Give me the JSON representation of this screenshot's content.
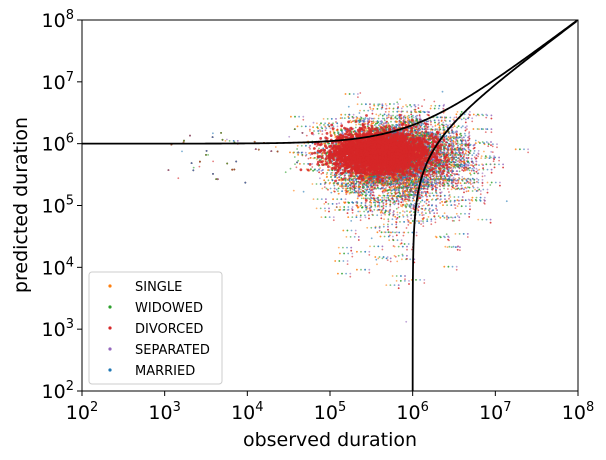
{
  "chart_data": {
    "type": "scatter",
    "title": "",
    "xlabel": "observed duration",
    "ylabel": "predicted duration",
    "xscale": "log",
    "yscale": "log",
    "xlim": [
      100,
      100000000
    ],
    "ylim": [
      100,
      100000000
    ],
    "x_ticks": [
      {
        "value": 100,
        "base": "10",
        "exp": "2"
      },
      {
        "value": 1000,
        "base": "10",
        "exp": "3"
      },
      {
        "value": 10000,
        "base": "10",
        "exp": "4"
      },
      {
        "value": 100000,
        "base": "10",
        "exp": "5"
      },
      {
        "value": 1000000,
        "base": "10",
        "exp": "6"
      },
      {
        "value": 10000000,
        "base": "10",
        "exp": "7"
      },
      {
        "value": 100000000,
        "base": "10",
        "exp": "8"
      }
    ],
    "y_ticks": [
      {
        "value": 100,
        "base": "10",
        "exp": "2"
      },
      {
        "value": 1000,
        "base": "10",
        "exp": "3"
      },
      {
        "value": 10000,
        "base": "10",
        "exp": "4"
      },
      {
        "value": 100000,
        "base": "10",
        "exp": "5"
      },
      {
        "value": 1000000,
        "base": "10",
        "exp": "6"
      },
      {
        "value": 10000000,
        "base": "10",
        "exp": "7"
      },
      {
        "value": 100000000,
        "base": "10",
        "exp": "8"
      }
    ],
    "grid": false,
    "legend_position": "lower-left",
    "series": [
      {
        "name": "SINGLE",
        "color": "#ff7f0e",
        "center_log_x": 5.75,
        "center_log_y": 5.8,
        "points_shown": 2500
      },
      {
        "name": "WIDOWED",
        "color": "#2ca02c",
        "center_log_x": 5.8,
        "center_log_y": 5.8,
        "points_shown": 2500
      },
      {
        "name": "DIVORCED",
        "color": "#d62728",
        "center_log_x": 5.9,
        "center_log_y": 5.75,
        "points_shown": 2500
      },
      {
        "name": "SEPARATED",
        "color": "#9467bd",
        "center_log_x": 5.9,
        "center_log_y": 5.8,
        "points_shown": 2500
      },
      {
        "name": "MARRIED",
        "color": "#1f77b4",
        "center_log_x": 5.85,
        "center_log_y": 5.8,
        "points_shown": 2500
      }
    ],
    "dense_core": {
      "color": "#d62728",
      "log_x_range": [
        4.9,
        6.3
      ],
      "log_y_range": [
        5.4,
        6.3
      ]
    },
    "reference_curves": [
      {
        "name": "y = x + 1e6",
        "formula": "sum",
        "constant": 1000000,
        "color": "#000000"
      },
      {
        "name": "y = x - 1e6",
        "formula": "difference",
        "constant": 1000000,
        "color": "#000000"
      }
    ]
  }
}
